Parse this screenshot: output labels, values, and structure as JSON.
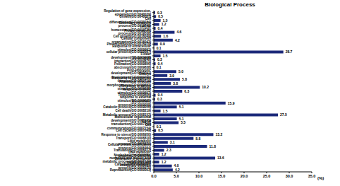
{
  "chart_data": {
    "type": "bar",
    "title": "Biological Process",
    "orientation": "horizontal",
    "x_label": "(%)",
    "color": "#1c2a7a",
    "data_labels": true,
    "grid": false,
    "categories": [
      "Regulation of gene expression, epigenetic(GO:0040029)",
      "Growth(GO:0040007)",
      "Cell differentiation(GO:0030154)",
      "Secondary metabolic process(GO:0019748)",
      "cellular homeostasis(GO:0019725)",
      "Protein metabolic process(GO:0019538)",
      "Cell growth(GO:0016049)",
      "Cellular component organization(GO:0016043)",
      "Photosynthesis(GO:0015979)",
      "Response to extracellular stimulus(GO:0009991)",
      "cellular process(GO:0009987)",
      "Flower development(GO:0009908)",
      "Pollen-pistil interaction(GO:0009875)",
      "Pollination(GO:0009856)",
      "abscission(GO:0009838)",
      "Post-embryonic development(GO:0009791)",
      "Embryo development(GO:0009790)",
      "Response to endogenous stimulus(GO:0009719)",
      "Anatomical structure morphogenesis(GO:0009653)",
      "Response to abiotic stimulus(GO:0009628)",
      "Response to biotic stimulus(GO:0009607)",
      "Tropism(GO:0009606)",
      "response to external stimulus(GO:0009605)",
      "Biosynthetic process(GO:0009058)",
      "Catabolic process(GO:0009056)",
      "Cell death(GO:0008219)",
      "Metabolic process(GO:0008152)",
      "Multicellular organismal development(GO:0007275)",
      "Signal transduction(GO:0007165)",
      "Cell communication(GO:0007154)",
      "Cell cycle(GO:0007049)",
      "Response to stress(GO:0006950)",
      "Transport(GO:0006810)",
      "Lipid metabolic process(GO:0006629)",
      "Cellular protein modification process(GO:0006464)",
      "Translation(GO:0006412)",
      "DNA metabolic process(GO:0006259)",
      "Nucleobase, nucleoside, nucleotide and nucleic acid metabolic process(GO:0006139)",
      "Generation of precursor metabolites and energy(GO:0006091)",
      "Carbohydrate metabolic process(GO:0005975)",
      "Reproduction(GO:0000003)"
    ],
    "values": [
      0.3,
      0.5,
      1.5,
      1.2,
      0.4,
      4.6,
      1.6,
      4.2,
      0.9,
      0.1,
      28.7,
      1.5,
      0.3,
      0.4,
      0.1,
      5.0,
      3.0,
      5.8,
      3.8,
      10.2,
      6.3,
      0.4,
      0.3,
      15.9,
      5.1,
      1.5,
      27.5,
      5.1,
      5.5,
      0.1,
      0.5,
      13.2,
      8.8,
      3.1,
      11.8,
      2.3,
      1.2,
      13.6,
      1.2,
      4.0,
      4.2
    ],
    "value_labels": [
      "0.3",
      "0.5",
      "1.5",
      "1.2",
      "0.4",
      "4.6",
      "1.6",
      "4.2",
      "0.9",
      "0.1",
      "28.7",
      "1.5",
      "0.3",
      "0.4",
      "0.1",
      "5.0",
      "3.0",
      "5.8",
      "3.8",
      "10.2",
      "6.3",
      "0.4",
      "0.3",
      "15.9",
      "5.1",
      "1.5",
      "27.5",
      "5.1",
      "5.5",
      "0.1",
      "0.5",
      "13.2",
      "8.8",
      "3.1",
      "11.8",
      "2.3",
      "1.2",
      "13.6",
      "1.2",
      "4.0",
      "4.2"
    ],
    "xlim": [
      0,
      35
    ],
    "xticks": [
      {
        "value": 0,
        "label": "0.0"
      },
      {
        "value": 5,
        "label": "5.0"
      },
      {
        "value": 10,
        "label": "10.0"
      },
      {
        "value": 15,
        "label": "15.0"
      },
      {
        "value": 20,
        "label": "20.0"
      },
      {
        "value": 25,
        "label": "25.0"
      },
      {
        "value": 30,
        "label": "30.0"
      },
      {
        "value": 35,
        "label": "35.0"
      }
    ]
  }
}
